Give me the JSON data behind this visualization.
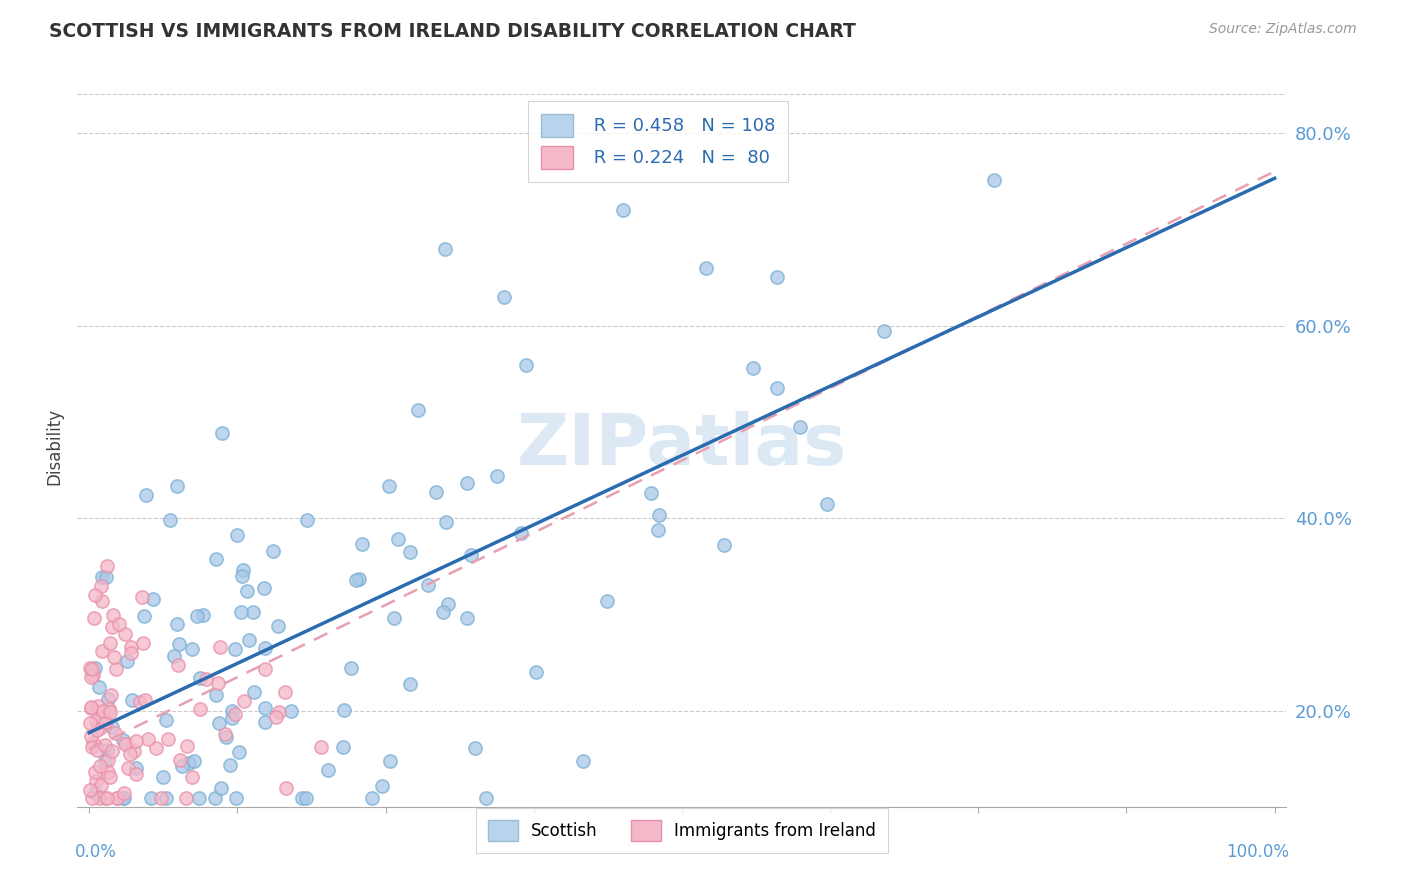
{
  "title": "SCOTTISH VS IMMIGRANTS FROM IRELAND DISABILITY CORRELATION CHART",
  "source": "Source: ZipAtlas.com",
  "ylabel": "Disability",
  "scottish_R": 0.458,
  "scottish_N": 108,
  "ireland_R": 0.224,
  "ireland_N": 80,
  "scottish_color": "#a8c8e8",
  "scottish_edge_color": "#7ab0d4",
  "ireland_color": "#f4b8c8",
  "ireland_edge_color": "#e890aa",
  "scottish_line_color": "#2b6cb0",
  "ireland_line_color": "#e8a0b0",
  "background_color": "#ffffff",
  "grid_color": "#cccccc",
  "ytick_values": [
    20,
    40,
    60,
    80
  ],
  "xmin": 0,
  "xmax": 100,
  "ymin": 10,
  "ymax": 85,
  "watermark": "ZIPatlas",
  "watermark_color": "#dce8f4"
}
